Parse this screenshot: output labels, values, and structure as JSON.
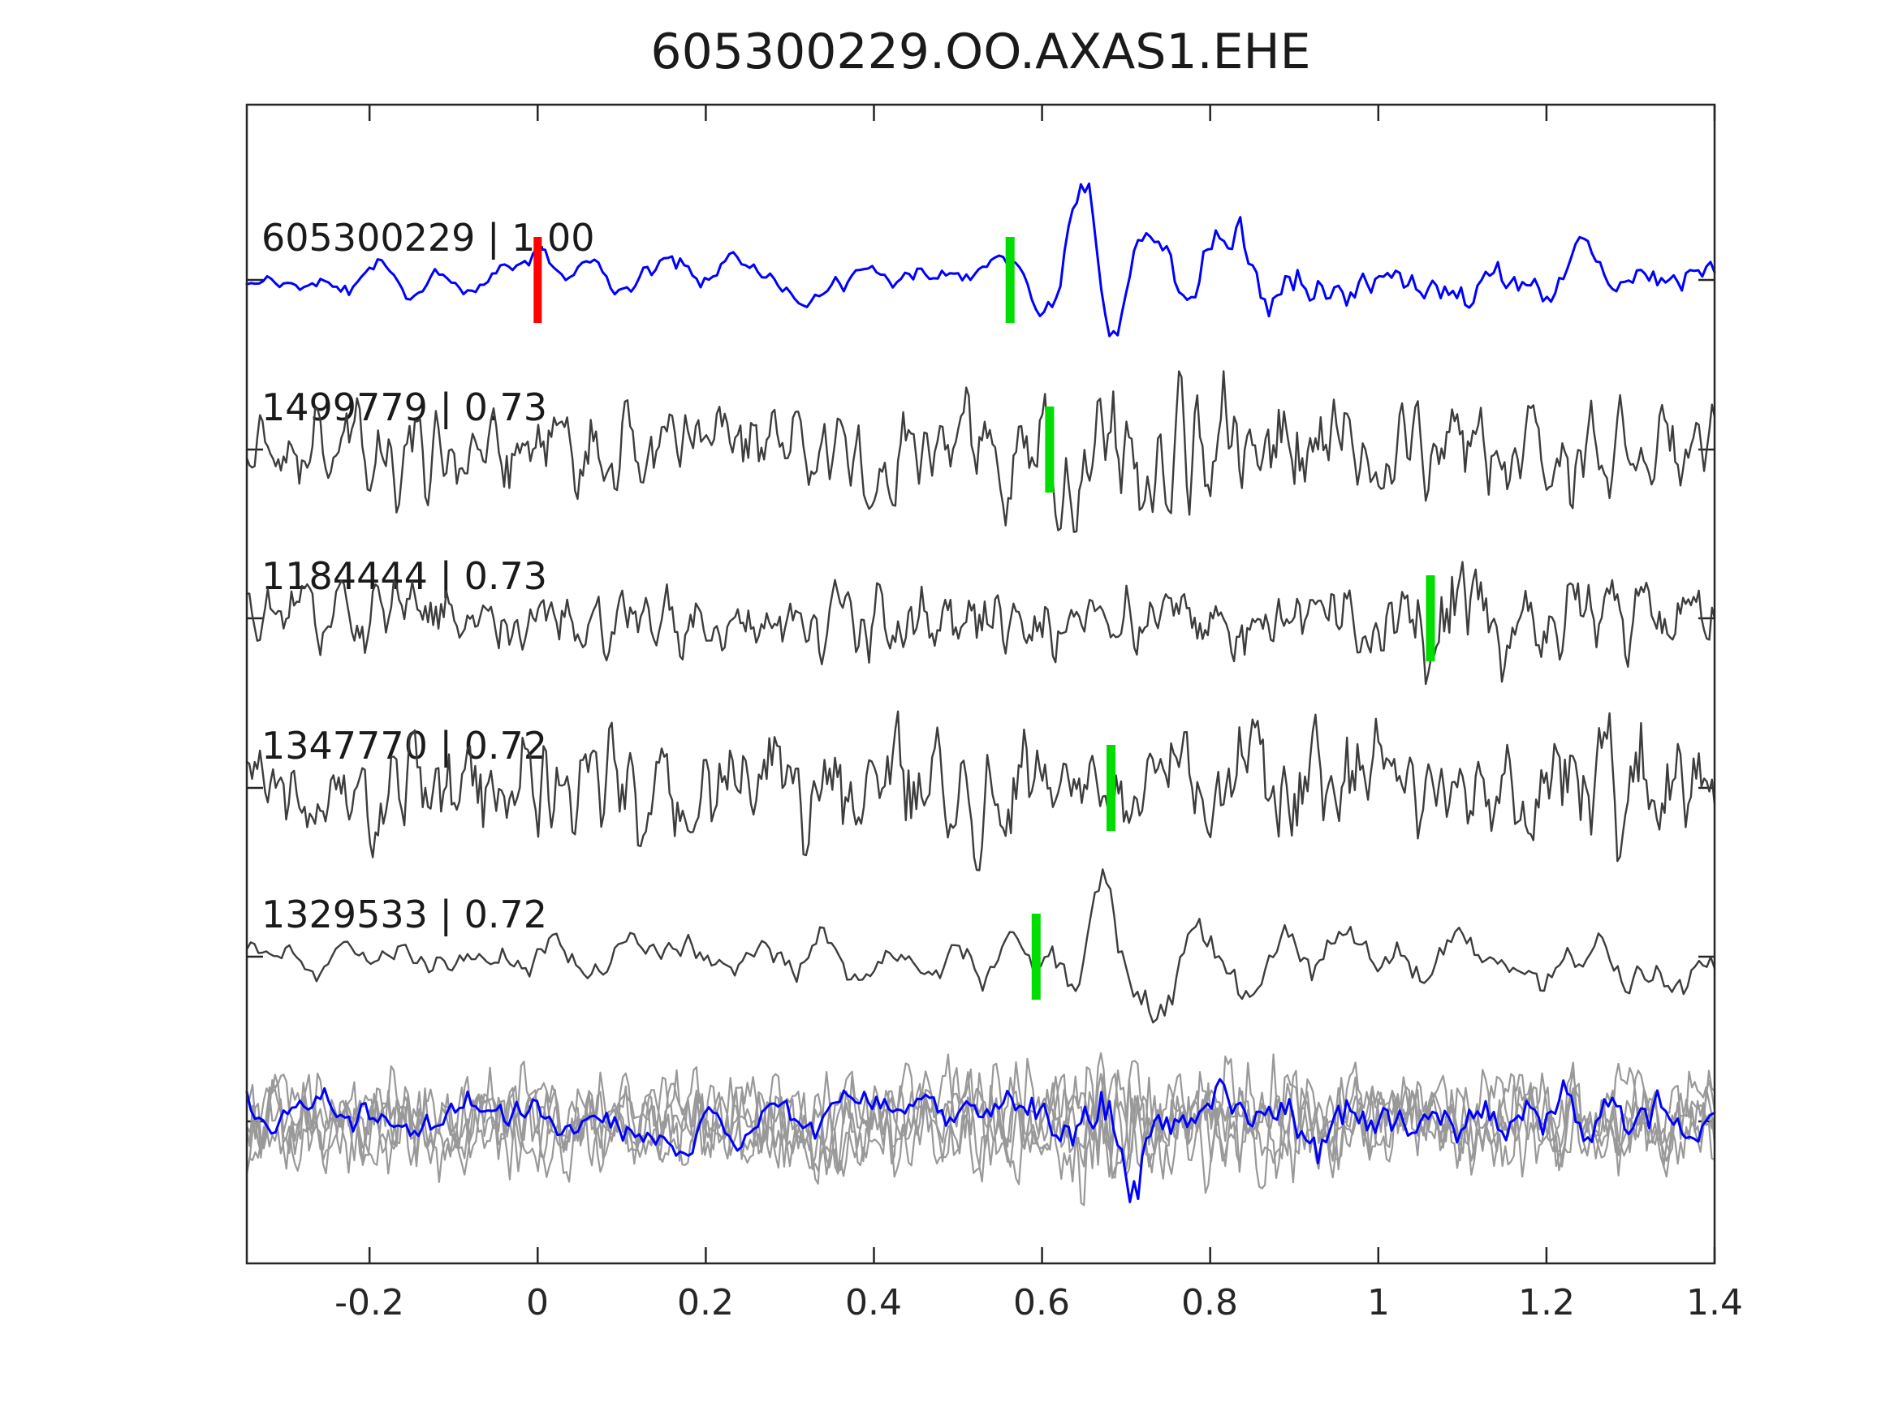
{
  "title": "605300229.OO.AXAS1.EHE",
  "colors": {
    "background": "#ffffff",
    "axis": "#262626",
    "text": "#1a1a1a",
    "template_trace": "#0000ff",
    "detection_trace": "#3d3d3d",
    "overlay_trace": "#999999",
    "pick_marker": "#00dd00",
    "trigger_marker": "#ff0000"
  },
  "chart_data": {
    "type": "line",
    "title": "605300229.OO.AXAS1.EHE",
    "xlabel": "",
    "ylabel": "",
    "grid": false,
    "legend": null,
    "xlim": [
      -0.346,
      1.4
    ],
    "xticks": [
      -0.2,
      0,
      0.2,
      0.4,
      0.6,
      0.8,
      1,
      1.2,
      1.4
    ],
    "xtick_labels": [
      "-0.2",
      "0",
      "0.2",
      "0.4",
      "0.6",
      "0.8",
      "1",
      "1.2",
      "1.4"
    ],
    "traces": [
      {
        "label": "605300229 | 1.00",
        "template_id": "605300229",
        "correlation": "1.00",
        "color": "#0000ff",
        "role": "template",
        "trigger": {
          "time": 0.0,
          "color": "#ff0000"
        },
        "pick": {
          "time": 0.562,
          "color": "#00dd00"
        },
        "wave": {
          "seed": 7,
          "points": 360,
          "smooth": 3,
          "envelope": [
            [
              -0.346,
              20
            ],
            [
              -0.1,
              26
            ],
            [
              0.1,
              30
            ],
            [
              0.35,
              26
            ],
            [
              0.55,
              26
            ],
            [
              0.62,
              50
            ],
            [
              0.7,
              60
            ],
            [
              0.8,
              70
            ],
            [
              0.9,
              58
            ],
            [
              1.0,
              50
            ],
            [
              1.1,
              48
            ],
            [
              1.2,
              40
            ],
            [
              1.3,
              52
            ],
            [
              1.4,
              38
            ]
          ],
          "wavelet": {
            "center": 0.67,
            "sigma": 0.055,
            "period": 0.088,
            "amp": 95,
            "t0": 0.621
          }
        }
      },
      {
        "label": "1499779 | 0.73",
        "template_id": "1499779",
        "correlation": "0.73",
        "color": "#3d3d3d",
        "role": "detection",
        "pick": {
          "time": 0.609,
          "color": "#00dd00"
        },
        "wave": {
          "seed": 21,
          "points": 560,
          "smooth": 1,
          "envelope": [
            [
              -0.346,
              55
            ],
            [
              0.0,
              58
            ],
            [
              0.3,
              60
            ],
            [
              0.55,
              62
            ],
            [
              0.62,
              85
            ],
            [
              0.75,
              80
            ],
            [
              0.9,
              68
            ],
            [
              1.1,
              60
            ],
            [
              1.3,
              62
            ],
            [
              1.4,
              55
            ]
          ],
          "wavelet": {
            "center": 0.66,
            "sigma": 0.05,
            "period": 0.09,
            "amp": 50,
            "t0": 0.5705
          }
        }
      },
      {
        "label": "1184444 | 0.73",
        "template_id": "1184444",
        "correlation": "0.73",
        "color": "#3d3d3d",
        "role": "detection",
        "pick": {
          "time": 1.062,
          "color": "#00dd00"
        },
        "wave": {
          "seed": 31,
          "points": 560,
          "smooth": 1,
          "envelope": [
            [
              -0.346,
              38
            ],
            [
              0.3,
              42
            ],
            [
              0.6,
              45
            ],
            [
              0.9,
              42
            ],
            [
              1.02,
              48
            ],
            [
              1.08,
              70
            ],
            [
              1.15,
              65
            ],
            [
              1.25,
              48
            ],
            [
              1.4,
              45
            ]
          ],
          "wavelet": {
            "center": 1.09,
            "sigma": 0.042,
            "period": 0.085,
            "amp": 55,
            "t0": 1.001
          }
        }
      },
      {
        "label": "1347770 | 0.72",
        "template_id": "1347770",
        "correlation": "0.72",
        "color": "#3d3d3d",
        "role": "detection",
        "pick": {
          "time": 0.682,
          "color": "#00dd00"
        },
        "wave": {
          "seed": 41,
          "points": 560,
          "smooth": 1,
          "envelope": [
            [
              -0.346,
              55
            ],
            [
              -0.1,
              70
            ],
            [
              0.1,
              62
            ],
            [
              0.3,
              75
            ],
            [
              0.5,
              70
            ],
            [
              0.65,
              55
            ],
            [
              0.8,
              62
            ],
            [
              0.95,
              80
            ],
            [
              1.1,
              58
            ],
            [
              1.25,
              75
            ],
            [
              1.4,
              70
            ]
          ]
        }
      },
      {
        "label": "1329533 | 0.72",
        "template_id": "1329533",
        "correlation": "0.72",
        "color": "#3d3d3d",
        "role": "detection",
        "pick": {
          "time": 0.593,
          "color": "#00dd00"
        },
        "wave": {
          "seed": 11,
          "points": 380,
          "smooth": 3,
          "envelope": [
            [
              -0.346,
              30
            ],
            [
              0.2,
              32
            ],
            [
              0.5,
              30
            ],
            [
              0.58,
              35
            ],
            [
              0.68,
              50
            ],
            [
              0.8,
              48
            ],
            [
              0.95,
              42
            ],
            [
              1.1,
              34
            ],
            [
              1.25,
              36
            ],
            [
              1.4,
              30
            ]
          ],
          "wavelet": {
            "center": 0.69,
            "sigma": 0.055,
            "period": 0.1,
            "amp": 85,
            "t0": 0.555
          }
        }
      }
    ],
    "overlay_row": {
      "description": "all detections overlaid with template",
      "gray_color": "#999999",
      "gray_wave": {
        "seeds": [
          51,
          52,
          53,
          54,
          55
        ],
        "points": 520,
        "smooth": 1,
        "envelope": [
          [
            -0.346,
            52
          ],
          [
            0.3,
            55
          ],
          [
            0.58,
            60
          ],
          [
            0.65,
            78
          ],
          [
            0.8,
            62
          ],
          [
            1.05,
            55
          ],
          [
            1.4,
            55
          ]
        ]
      },
      "template_wave": {
        "color": "#0000ff",
        "seed": 61,
        "points": 360,
        "smooth": 3,
        "envelope": [
          [
            -0.346,
            30
          ],
          [
            0.45,
            32
          ],
          [
            0.6,
            42
          ],
          [
            0.66,
            58
          ],
          [
            0.75,
            55
          ],
          [
            0.9,
            48
          ],
          [
            1.1,
            36
          ],
          [
            1.3,
            42
          ],
          [
            1.4,
            38
          ]
        ],
        "wavelet": {
          "center": 0.7,
          "sigma": 0.05,
          "period": 0.09,
          "amp": 48,
          "t0": 0.633
        }
      }
    }
  }
}
